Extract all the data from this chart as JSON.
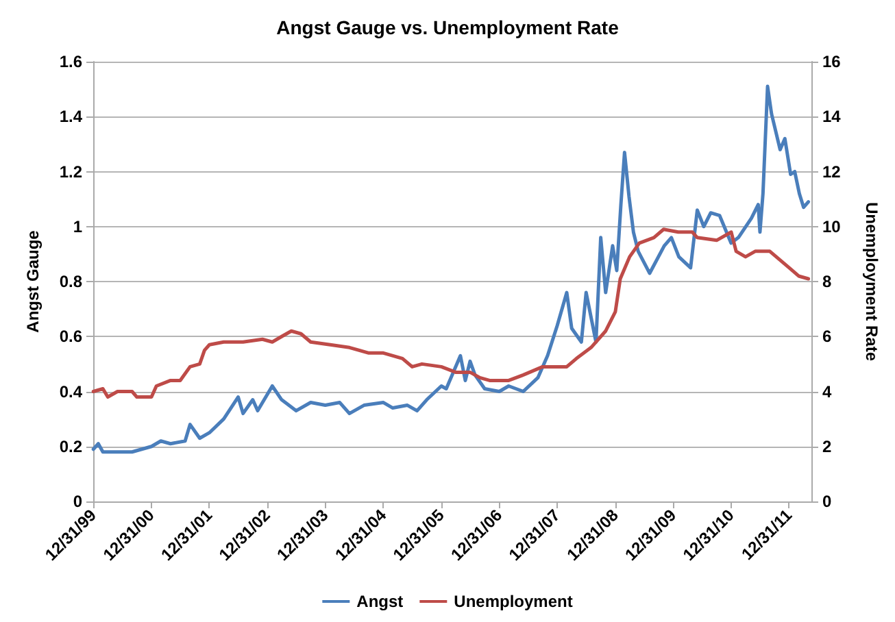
{
  "chart_data": {
    "type": "line",
    "title": "Angst Gauge vs. Unemployment Rate",
    "ylabel": "Angst Gauge",
    "y2label": "Unemployment Rate",
    "xlim": [
      "1999-12-31",
      "2012-05-20"
    ],
    "xticks": [
      {
        "value": "1999-12-31",
        "label": "12/31/99"
      },
      {
        "value": "2000-12-31",
        "label": "12/31/00"
      },
      {
        "value": "2001-12-31",
        "label": "12/31/01"
      },
      {
        "value": "2002-12-31",
        "label": "12/31/02"
      },
      {
        "value": "2003-12-31",
        "label": "12/31/03"
      },
      {
        "value": "2004-12-31",
        "label": "12/31/04"
      },
      {
        "value": "2005-12-31",
        "label": "12/31/05"
      },
      {
        "value": "2006-12-31",
        "label": "12/31/06"
      },
      {
        "value": "2007-12-31",
        "label": "12/31/07"
      },
      {
        "value": "2008-12-31",
        "label": "12/31/08"
      },
      {
        "value": "2009-12-31",
        "label": "12/31/09"
      },
      {
        "value": "2010-12-31",
        "label": "12/31/10"
      },
      {
        "value": "2011-12-31",
        "label": "12/31/11"
      }
    ],
    "ylim": [
      0,
      1.6
    ],
    "yticks": [
      0,
      0.2,
      0.4,
      0.6,
      0.8,
      1,
      1.2,
      1.4,
      1.6
    ],
    "y2lim": [
      0,
      16
    ],
    "y2ticks": [
      0,
      2,
      4,
      6,
      8,
      10,
      12,
      14,
      16
    ],
    "grid": "y",
    "legend": "bottom",
    "marker": "none",
    "line_style": "solid",
    "series": [
      {
        "name": "Angst",
        "color": "#4a7ebb",
        "x": [
          "2000-01-01",
          "2000-02-01",
          "2000-03-01",
          "2000-09-01",
          "2001-01-01",
          "2001-03-01",
          "2001-05-01",
          "2001-08-01",
          "2001-09-01",
          "2001-11-01",
          "2002-01-01",
          "2002-04-01",
          "2002-07-01",
          "2002-08-01",
          "2002-10-01",
          "2002-11-01",
          "2003-02-01",
          "2003-04-01",
          "2003-07-01",
          "2003-10-01",
          "2004-01-01",
          "2004-04-01",
          "2004-06-01",
          "2004-09-01",
          "2005-01-01",
          "2005-03-01",
          "2005-06-01",
          "2005-08-01",
          "2005-10-01",
          "2006-01-01",
          "2006-02-01",
          "2006-05-01",
          "2006-06-01",
          "2006-07-01",
          "2006-08-01",
          "2006-10-01",
          "2007-01-01",
          "2007-03-01",
          "2007-06-01",
          "2007-09-01",
          "2007-11-01",
          "2008-01-01",
          "2008-03-01",
          "2008-04-01",
          "2008-06-01",
          "2008-07-01",
          "2008-09-01",
          "2008-10-01",
          "2008-11-01",
          "2008-12-15",
          "2009-01-10",
          "2009-02-05",
          "2009-02-28",
          "2009-03-28",
          "2009-04-25",
          "2009-05-25",
          "2009-08-05",
          "2009-11-05",
          "2009-12-20",
          "2010-02-05",
          "2010-04-20",
          "2010-06-01",
          "2010-07-12",
          "2010-08-25",
          "2010-10-20",
          "2010-12-31",
          "2011-02-15",
          "2011-05-08",
          "2011-06-20",
          "2011-07-01",
          "2011-07-20",
          "2011-08-18",
          "2011-09-12",
          "2011-11-05",
          "2011-12-05",
          "2012-01-10",
          "2012-02-05",
          "2012-03-05",
          "2012-04-01",
          "2012-05-01"
        ],
        "values": [
          0.19,
          0.21,
          0.18,
          0.18,
          0.2,
          0.22,
          0.21,
          0.22,
          0.28,
          0.23,
          0.25,
          0.3,
          0.38,
          0.32,
          0.37,
          0.33,
          0.42,
          0.37,
          0.33,
          0.36,
          0.35,
          0.36,
          0.32,
          0.35,
          0.36,
          0.34,
          0.35,
          0.33,
          0.37,
          0.42,
          0.41,
          0.53,
          0.44,
          0.51,
          0.46,
          0.41,
          0.4,
          0.42,
          0.4,
          0.45,
          0.53,
          0.64,
          0.76,
          0.63,
          0.58,
          0.76,
          0.58,
          0.96,
          0.76,
          0.93,
          0.84,
          1.08,
          1.27,
          1.11,
          0.98,
          0.91,
          0.83,
          0.93,
          0.96,
          0.89,
          0.85,
          1.06,
          1.0,
          1.05,
          1.04,
          0.94,
          0.96,
          1.03,
          1.08,
          0.98,
          1.12,
          1.51,
          1.41,
          1.28,
          1.32,
          1.19,
          1.2,
          1.12,
          1.07,
          1.09
        ]
      },
      {
        "name": "Unemployment",
        "color": "#be4b48",
        "axis": "y2",
        "x": [
          "2000-01-01",
          "2000-03-01",
          "2000-04-01",
          "2000-06-01",
          "2000-09-01",
          "2000-10-01",
          "2001-01-01",
          "2001-02-01",
          "2001-05-01",
          "2001-07-01",
          "2001-09-01",
          "2001-11-01",
          "2001-12-01",
          "2002-01-01",
          "2002-04-01",
          "2002-08-01",
          "2002-12-01",
          "2003-02-01",
          "2003-04-01",
          "2003-06-01",
          "2003-08-01",
          "2003-10-01",
          "2004-02-01",
          "2004-06-01",
          "2004-10-01",
          "2005-01-01",
          "2005-05-01",
          "2005-07-01",
          "2005-09-01",
          "2006-01-01",
          "2006-04-01",
          "2006-07-01",
          "2006-09-01",
          "2006-11-01",
          "2007-03-01",
          "2007-06-01",
          "2007-10-01",
          "2008-03-01",
          "2008-05-01",
          "2008-08-01",
          "2008-11-01",
          "2009-01-01",
          "2009-02-01",
          "2009-04-01",
          "2009-06-01",
          "2009-09-01",
          "2009-11-01",
          "2010-02-01",
          "2010-05-01",
          "2010-06-01",
          "2010-10-01",
          "2011-01-01",
          "2011-02-01",
          "2011-04-01",
          "2011-06-01",
          "2011-09-01",
          "2012-01-01",
          "2012-03-01",
          "2012-05-01"
        ],
        "values": [
          4.0,
          4.1,
          3.8,
          4.0,
          4.0,
          3.8,
          3.8,
          4.2,
          4.4,
          4.4,
          4.9,
          5.0,
          5.5,
          5.7,
          5.8,
          5.8,
          5.9,
          5.8,
          6.0,
          6.2,
          6.1,
          5.8,
          5.7,
          5.6,
          5.4,
          5.4,
          5.2,
          4.9,
          5.0,
          4.9,
          4.7,
          4.7,
          4.5,
          4.4,
          4.4,
          4.6,
          4.9,
          4.9,
          5.2,
          5.6,
          6.2,
          6.9,
          8.1,
          8.9,
          9.4,
          9.6,
          9.9,
          9.8,
          9.8,
          9.6,
          9.5,
          9.8,
          9.1,
          8.9,
          9.1,
          9.1,
          8.5,
          8.2,
          8.1
        ]
      }
    ]
  }
}
